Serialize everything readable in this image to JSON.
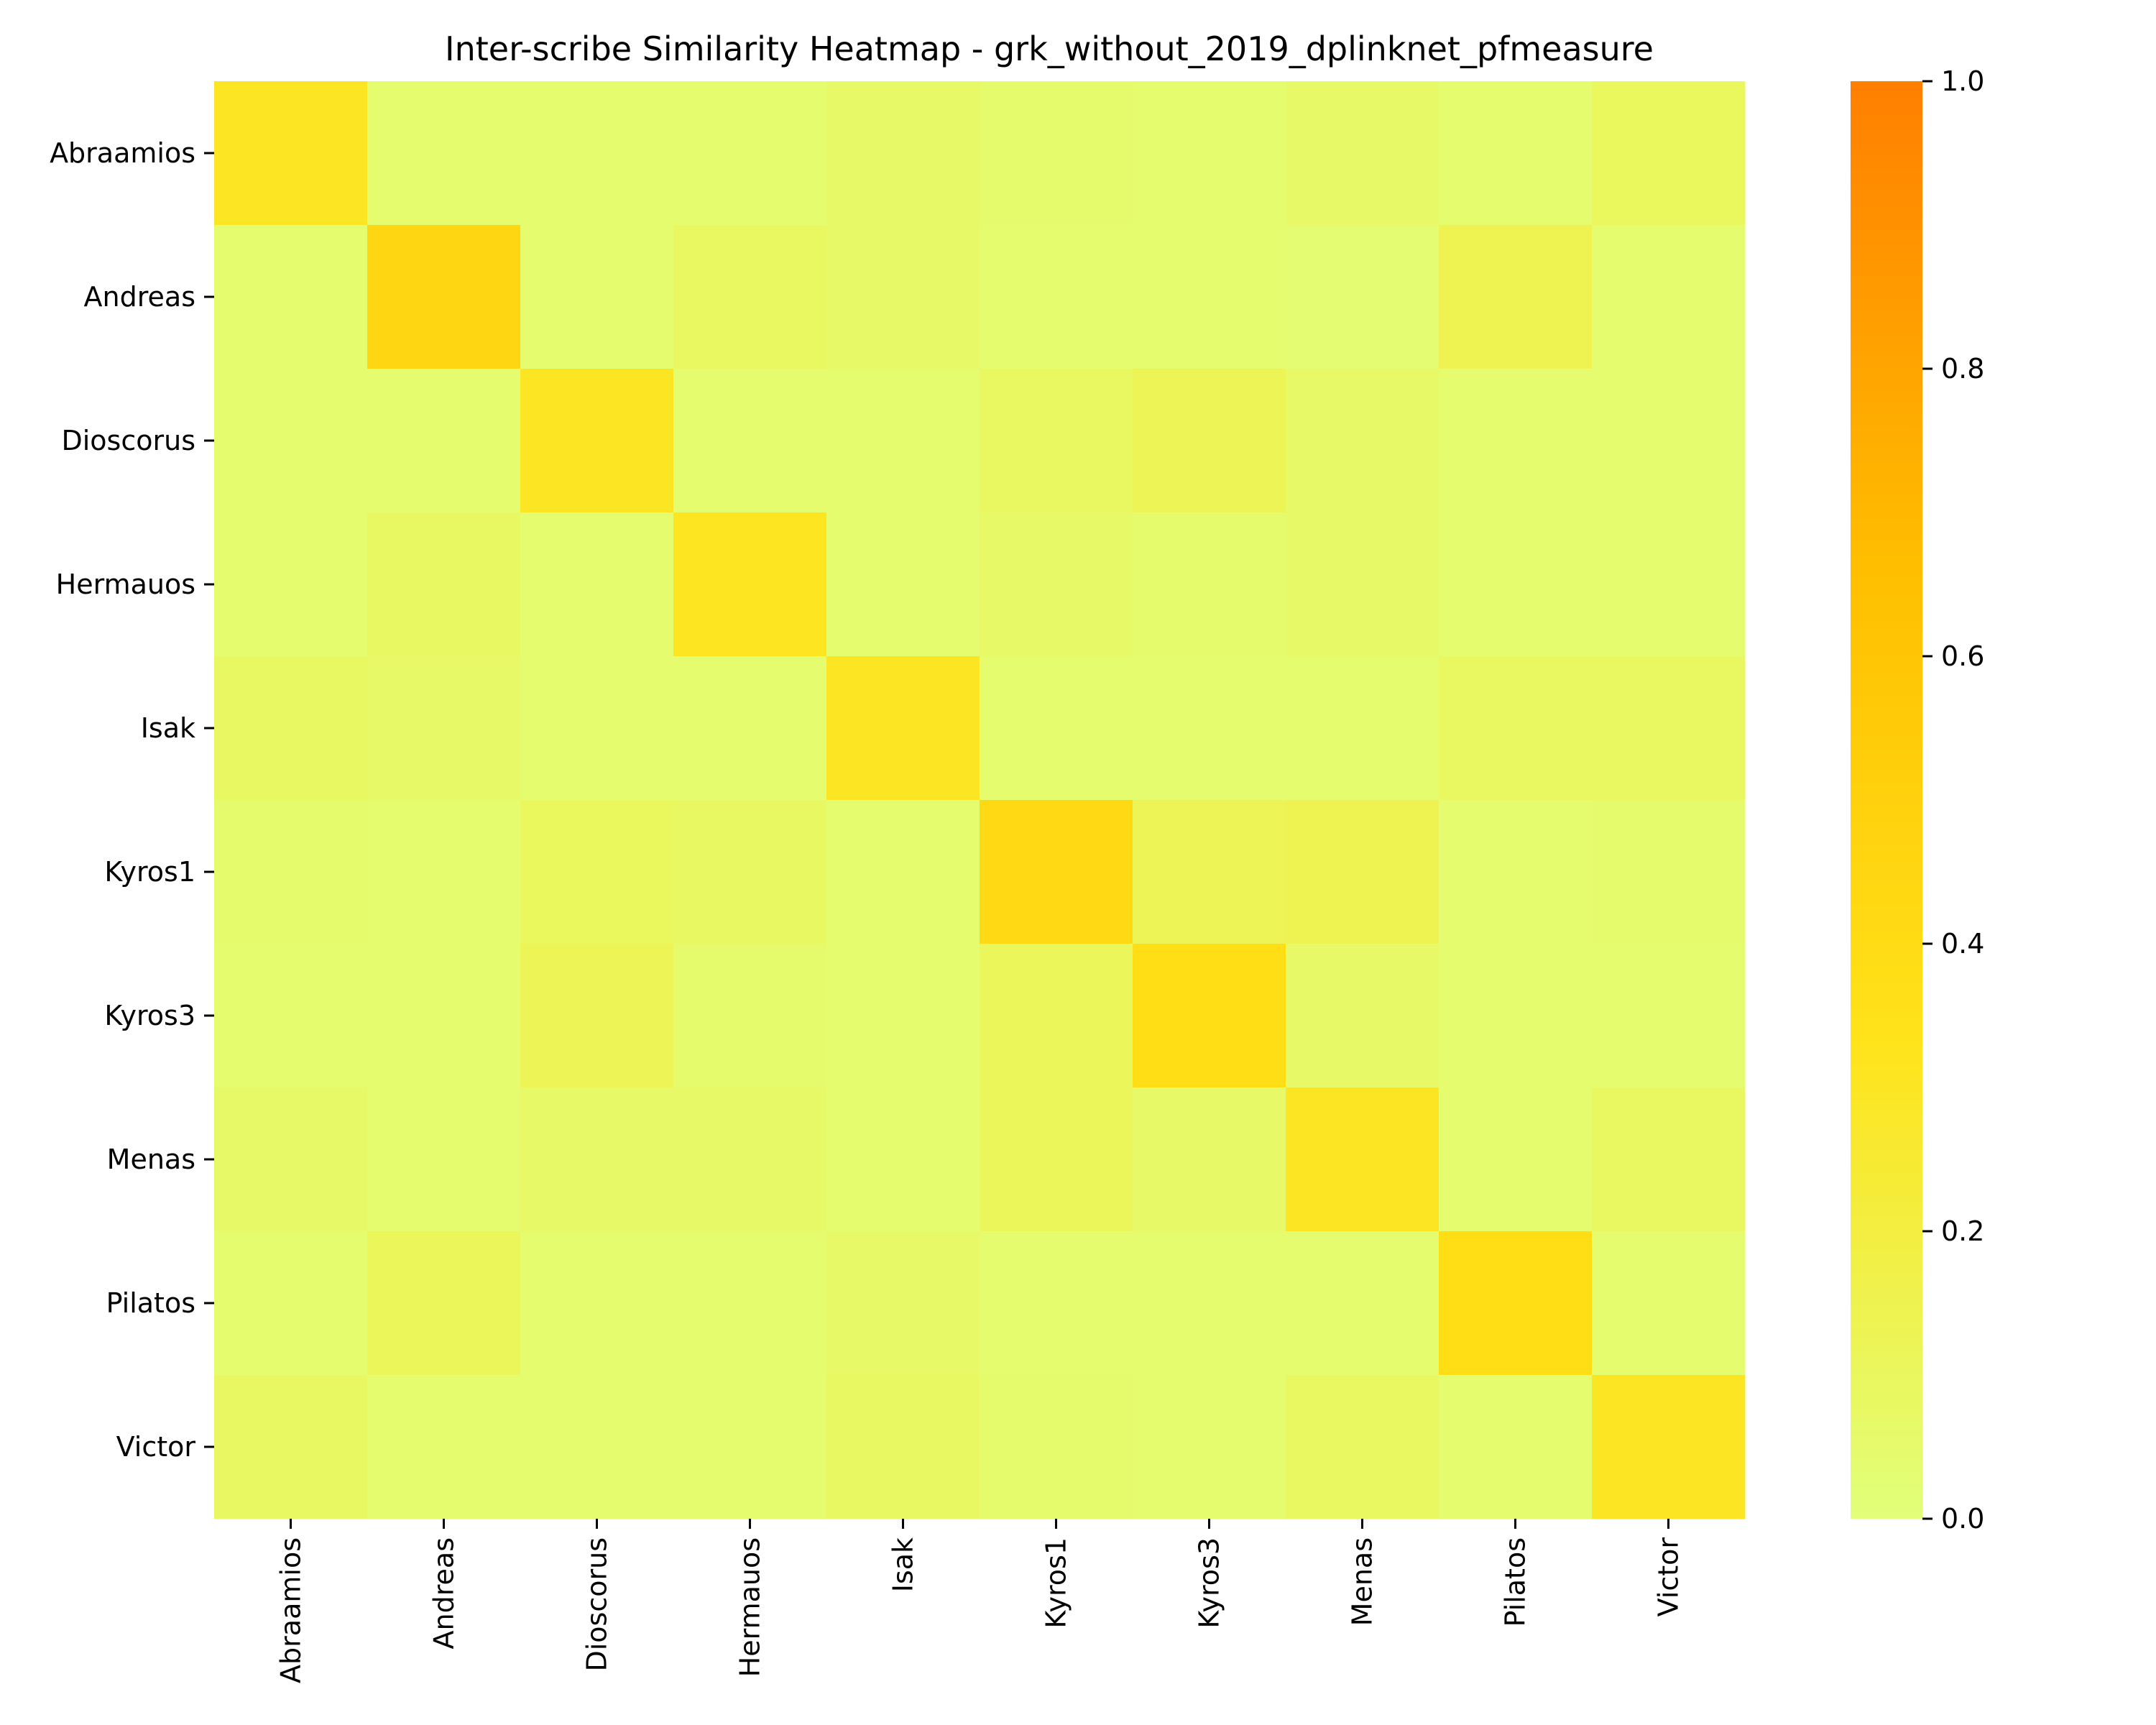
{
  "chart_data": {
    "type": "heatmap",
    "title": "Inter-scribe Similarity Heatmap - grk_without_2019_dplinknet_pfmeasure",
    "xlabel": "",
    "ylabel": "",
    "rows": [
      "Abraamios",
      "Andreas",
      "Dioscorus",
      "Hermauos",
      "Isak",
      "Kyros1",
      "Kyros3",
      "Menas",
      "Pilatos",
      "Victor"
    ],
    "columns": [
      "Abraamios",
      "Andreas",
      "Dioscorus",
      "Hermauos",
      "Isak",
      "Kyros1",
      "Kyros3",
      "Menas",
      "Pilatos",
      "Victor"
    ],
    "values": [
      [
        0.3,
        0.04,
        0.04,
        0.04,
        0.07,
        0.05,
        0.04,
        0.07,
        0.04,
        0.1
      ],
      [
        0.04,
        0.45,
        0.04,
        0.09,
        0.07,
        0.04,
        0.04,
        0.03,
        0.14,
        0.04
      ],
      [
        0.04,
        0.04,
        0.3,
        0.04,
        0.04,
        0.09,
        0.13,
        0.07,
        0.04,
        0.04
      ],
      [
        0.04,
        0.08,
        0.04,
        0.31,
        0.04,
        0.07,
        0.05,
        0.07,
        0.04,
        0.04
      ],
      [
        0.08,
        0.07,
        0.04,
        0.04,
        0.3,
        0.04,
        0.04,
        0.04,
        0.09,
        0.09
      ],
      [
        0.05,
        0.04,
        0.1,
        0.08,
        0.04,
        0.42,
        0.13,
        0.14,
        0.04,
        0.05
      ],
      [
        0.04,
        0.04,
        0.13,
        0.05,
        0.04,
        0.11,
        0.38,
        0.07,
        0.04,
        0.04
      ],
      [
        0.07,
        0.04,
        0.07,
        0.07,
        0.04,
        0.11,
        0.07,
        0.3,
        0.04,
        0.09
      ],
      [
        0.04,
        0.11,
        0.04,
        0.04,
        0.07,
        0.04,
        0.04,
        0.04,
        0.38,
        0.04
      ],
      [
        0.08,
        0.04,
        0.04,
        0.04,
        0.08,
        0.05,
        0.04,
        0.09,
        0.04,
        0.3
      ]
    ],
    "colorbar": {
      "min": 0.0,
      "max": 1.0,
      "ticks": [
        "0.0",
        "0.2",
        "0.4",
        "0.6",
        "0.8",
        "1.0"
      ],
      "colors": [
        "#e1ff7a",
        "#ffe31a",
        "#ffbe00",
        "#ff7f00"
      ]
    },
    "grid": false
  }
}
